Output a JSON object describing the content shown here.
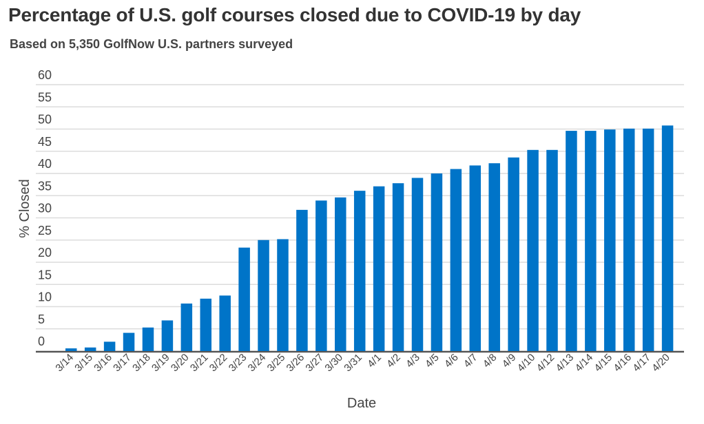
{
  "chart_data": {
    "type": "bar",
    "title": "Percentage of U.S. golf courses closed due to COVID-19 by day",
    "subtitle": "Based on 5,350 GolfNow U.S. partners surveyed",
    "xlabel": "Date",
    "ylabel": "% Closed",
    "ylim": [
      0,
      60
    ],
    "yticks": [
      "0",
      "5",
      "10",
      "15",
      "20",
      "25",
      "30",
      "35",
      "40",
      "45",
      "50",
      "55",
      "60"
    ],
    "grid": true,
    "color": "#0074c8",
    "categories": [
      "3/14",
      "3/15",
      "3/16",
      "3/17",
      "3/18",
      "3/19",
      "3/20",
      "3/21",
      "3/22",
      "3/23",
      "3/24",
      "3/25",
      "3/26",
      "3/27",
      "3/30",
      "3/31",
      "4/1",
      "4/2",
      "4/3",
      "4/5",
      "4/6",
      "4/7",
      "4/8",
      "4/9",
      "4/10",
      "4/12",
      "4/13",
      "4/14",
      "4/15",
      "4/16",
      "4/17",
      "4/20"
    ],
    "values": [
      0.6,
      0.8,
      2.1,
      4.1,
      5.3,
      6.9,
      10.7,
      11.8,
      12.5,
      23.3,
      25.0,
      25.2,
      31.8,
      33.9,
      34.6,
      36.1,
      37.1,
      37.8,
      39.0,
      40.0,
      41.0,
      41.8,
      42.3,
      43.6,
      45.3,
      45.3,
      49.6,
      49.6,
      49.9,
      50.1,
      50.1,
      50.8
    ]
  }
}
